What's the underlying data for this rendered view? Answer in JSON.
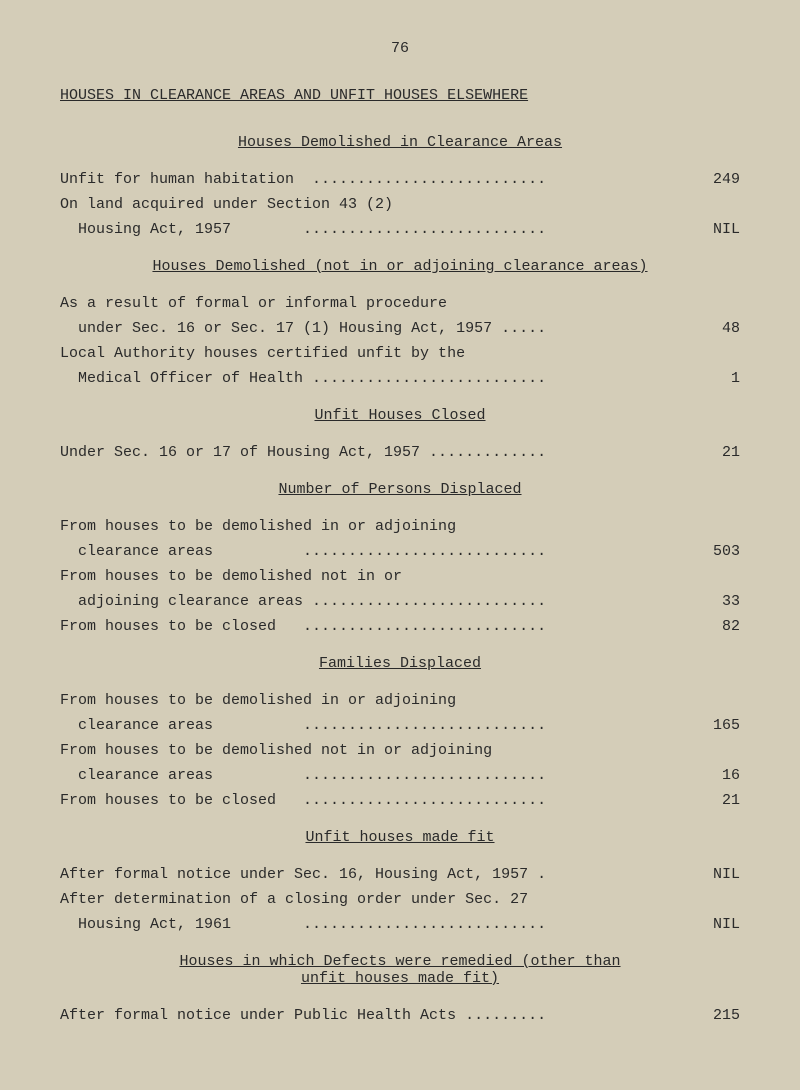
{
  "pageNumber": "76",
  "mainTitle": "HOUSES IN CLEARANCE AREAS AND UNFIT HOUSES ELSEWHERE",
  "sections": {
    "s1": {
      "title": "Houses Demolished in Clearance Areas",
      "entries": {
        "e1": {
          "label": "Unfit for human habitation  ..........................",
          "value": "249"
        },
        "e2a": {
          "label": "On land acquired under Section 43 (2)",
          "value": ""
        },
        "e2b": {
          "label": "  Housing Act, 1957        ...........................",
          "value": "NIL"
        }
      }
    },
    "s2": {
      "title": "Houses Demolished (not in or adjoining clearance areas)",
      "entries": {
        "e1a": {
          "label": "As a result of formal or informal procedure",
          "value": ""
        },
        "e1b": {
          "label": "  under Sec. 16 or Sec. 17 (1) Housing Act, 1957 .....",
          "value": "48"
        },
        "e2a": {
          "label": "Local Authority houses certified unfit by the",
          "value": ""
        },
        "e2b": {
          "label": "  Medical Officer of Health ..........................",
          "value": "1"
        }
      }
    },
    "s3": {
      "title": "Unfit Houses Closed",
      "entries": {
        "e1": {
          "label": "Under Sec. 16 or 17 of Housing Act, 1957 .............",
          "value": "21"
        }
      }
    },
    "s4": {
      "title": "Number of Persons Displaced",
      "entries": {
        "e1a": {
          "label": "From houses to be demolished in or adjoining",
          "value": ""
        },
        "e1b": {
          "label": "  clearance areas          ...........................",
          "value": "503"
        },
        "e2a": {
          "label": "From houses to be demolished not in or",
          "value": ""
        },
        "e2b": {
          "label": "  adjoining clearance areas ..........................",
          "value": "33"
        },
        "e3": {
          "label": "From houses to be closed   ...........................",
          "value": "82"
        }
      }
    },
    "s5": {
      "title": "Families Displaced",
      "entries": {
        "e1a": {
          "label": "From houses to be demolished in or adjoining",
          "value": ""
        },
        "e1b": {
          "label": "  clearance areas          ...........................",
          "value": "165"
        },
        "e2a": {
          "label": "From houses to be demolished not in or adjoining",
          "value": ""
        },
        "e2b": {
          "label": "  clearance areas          ...........................",
          "value": "16"
        },
        "e3": {
          "label": "From houses to be closed   ...........................",
          "value": "21"
        }
      }
    },
    "s6": {
      "title": "Unfit houses made fit",
      "entries": {
        "e1": {
          "label": "After formal notice under Sec. 16, Housing Act, 1957 .",
          "value": "NIL"
        },
        "e2a": {
          "label": "After determination of a closing order under Sec. 27",
          "value": ""
        },
        "e2b": {
          "label": "  Housing Act, 1961        ...........................",
          "value": "NIL"
        }
      }
    },
    "s7": {
      "titleLine1": "Houses in which Defects were remedied (other than",
      "titleLine2": "unfit houses made fit)",
      "entries": {
        "e1": {
          "label": "After formal notice under Public Health Acts .........",
          "value": "215"
        }
      }
    }
  }
}
